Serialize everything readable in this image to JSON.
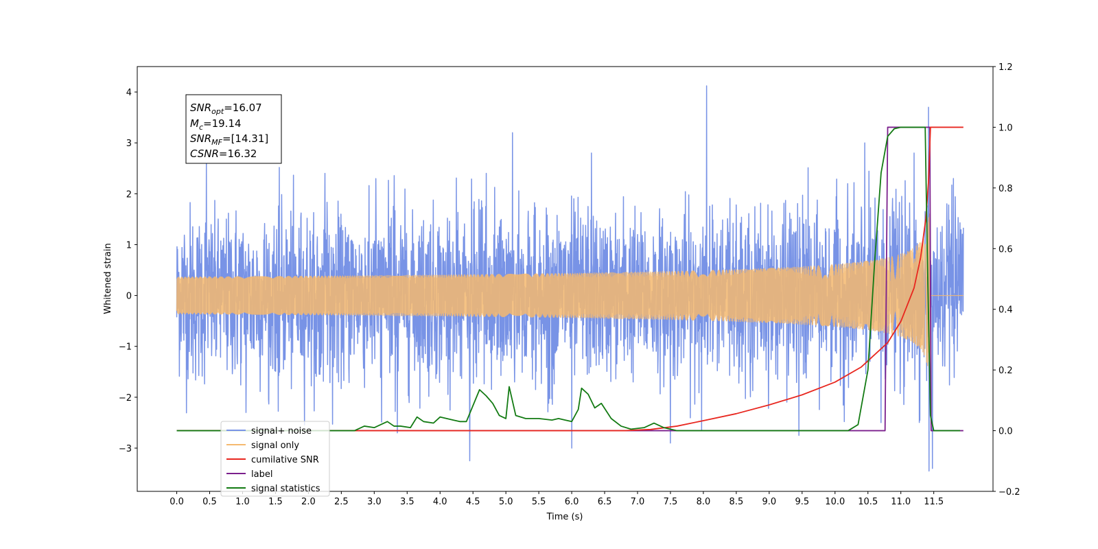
{
  "chart_data": {
    "type": "line",
    "xlabel": "Time (s)",
    "ylabel": "Whitened strain",
    "xlim": [
      -0.6,
      12.4
    ],
    "ylim": [
      -3.85,
      4.5
    ],
    "y2lim": [
      -0.2,
      1.2
    ],
    "x_ticks": [
      0.0,
      0.5,
      1.0,
      1.5,
      2.0,
      2.5,
      3.0,
      3.5,
      4.0,
      4.5,
      5.0,
      5.5,
      6.0,
      6.5,
      7.0,
      7.5,
      8.0,
      8.5,
      9.0,
      9.5,
      10.0,
      10.5,
      11.0,
      11.5
    ],
    "x_tick_labels": [
      "0.0",
      "0.5",
      "1.0",
      "1.5",
      "2.0",
      "2.5",
      "3.0",
      "3.5",
      "4.0",
      "4.5",
      "5.0",
      "5.5",
      "6.0",
      "6.5",
      "7.0",
      "7.5",
      "8.0",
      "8.5",
      "9.0",
      "9.5",
      "10.0",
      "10.5",
      "11.0",
      "11.5"
    ],
    "y_ticks": [
      -3,
      -2,
      -1,
      0,
      1,
      2,
      3,
      4
    ],
    "y_tick_labels": [
      "−3",
      "−2",
      "−1",
      "0",
      "1",
      "2",
      "3",
      "4"
    ],
    "y2_ticks": [
      -0.2,
      0.0,
      0.2,
      0.4,
      0.6,
      0.8,
      1.0,
      1.2
    ],
    "y2_tick_labels": [
      "−0.2",
      "0.0",
      "0.2",
      "0.4",
      "0.6",
      "0.8",
      "1.0",
      "1.2"
    ],
    "info_box": [
      {
        "base": "SNR",
        "sub": "opt",
        "rest": "=16.07"
      },
      {
        "base": "M",
        "sub": "c",
        "rest": "=19.14"
      },
      {
        "base": "SNR",
        "sub": "MF",
        "rest": "=[14.31]"
      },
      {
        "base": "CSNR",
        "sub": "",
        "rest": "=16.32"
      }
    ],
    "legend_position": "lower-left",
    "series": [
      {
        "name": "signal+ noise",
        "axis": "left",
        "color": "#7893e6",
        "noise_std": 0.8,
        "spikes": [
          [
            0.45,
            2.6
          ],
          [
            1.05,
            -2.3
          ],
          [
            2.25,
            2.4
          ],
          [
            3.35,
            -2.7
          ],
          [
            4.45,
            -3.25
          ],
          [
            4.7,
            2.4
          ],
          [
            5.1,
            3.2
          ],
          [
            6.0,
            -3.0
          ],
          [
            6.3,
            2.8
          ],
          [
            7.5,
            -2.9
          ],
          [
            8.05,
            4.12
          ],
          [
            9.45,
            -2.75
          ],
          [
            10.45,
            3.0
          ],
          [
            10.7,
            -2.5
          ],
          [
            11.2,
            2.8
          ],
          [
            11.42,
            3.7
          ],
          [
            11.43,
            -3.45
          ],
          [
            11.48,
            -3.4
          ],
          [
            11.8,
            2.3
          ]
        ]
      },
      {
        "name": "signal only",
        "axis": "left",
        "color": "#f5b96e",
        "chirp_tc": 11.45,
        "chirp_peak": 2.05
      },
      {
        "name": "cumilative SNR",
        "axis": "right",
        "color": "#e8261e",
        "x": [
          0.0,
          6.8,
          7.2,
          7.6,
          8.0,
          8.5,
          9.0,
          9.5,
          10.0,
          10.4,
          10.8,
          11.0,
          11.2,
          11.3,
          11.38,
          11.42,
          11.45,
          11.5,
          11.95
        ],
        "y": [
          0.0,
          0.0,
          0.004,
          0.015,
          0.033,
          0.056,
          0.085,
          0.118,
          0.16,
          0.21,
          0.29,
          0.36,
          0.47,
          0.57,
          0.7,
          0.82,
          1.0,
          1.0,
          1.0
        ]
      },
      {
        "name": "label",
        "axis": "right",
        "color": "#7b1f8c",
        "x": [
          0.0,
          10.76,
          10.8,
          11.44,
          11.46,
          11.95
        ],
        "y": [
          0.0,
          0.0,
          1.0,
          1.0,
          0.0,
          0.0
        ]
      },
      {
        "name": "signal statistics",
        "axis": "right",
        "color": "#127a12",
        "x": [
          0.0,
          2.7,
          2.85,
          3.0,
          3.1,
          3.2,
          3.3,
          3.4,
          3.55,
          3.65,
          3.75,
          3.9,
          4.0,
          4.1,
          4.2,
          4.3,
          4.4,
          4.6,
          4.7,
          4.8,
          4.9,
          5.0,
          5.05,
          5.15,
          5.3,
          5.5,
          5.7,
          5.8,
          5.9,
          6.0,
          6.1,
          6.15,
          6.25,
          6.35,
          6.45,
          6.6,
          6.75,
          6.9,
          7.1,
          7.25,
          7.4,
          7.6,
          10.2,
          10.35,
          10.5,
          10.6,
          10.7,
          10.8,
          10.9,
          11.0,
          11.37,
          11.4,
          11.45,
          11.5,
          11.9
        ],
        "y": [
          0.0,
          0.0,
          0.015,
          0.01,
          0.02,
          0.03,
          0.015,
          0.015,
          0.01,
          0.045,
          0.03,
          0.025,
          0.045,
          0.04,
          0.035,
          0.03,
          0.03,
          0.135,
          0.115,
          0.09,
          0.05,
          0.04,
          0.145,
          0.05,
          0.04,
          0.04,
          0.035,
          0.04,
          0.035,
          0.03,
          0.07,
          0.14,
          0.12,
          0.075,
          0.09,
          0.04,
          0.015,
          0.005,
          0.01,
          0.025,
          0.01,
          0.0,
          0.0,
          0.02,
          0.2,
          0.55,
          0.85,
          0.97,
          0.995,
          1.0,
          1.0,
          0.6,
          0.05,
          0.0,
          0.0
        ]
      }
    ],
    "legend_entries": [
      "signal+ noise",
      "signal only",
      "cumilative SNR",
      "label",
      "signal statistics"
    ]
  }
}
